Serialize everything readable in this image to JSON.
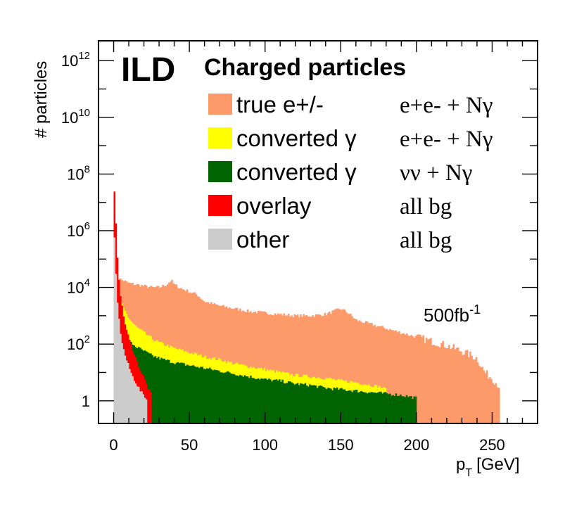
{
  "chart_data": {
    "type": "histogram",
    "experiment": "ILD",
    "title": "Charged particles",
    "xlabel": "p",
    "xlabel_sub": "T",
    "xlabel_unit": "[GeV]",
    "ylabel": "# particles",
    "xlim": [
      -10,
      280
    ],
    "ylog10_range": [
      -0.8,
      12.7
    ],
    "y_scale": "log",
    "xticks": [
      0,
      50,
      100,
      150,
      200,
      250
    ],
    "yticks": [
      {
        "base": "1",
        "exp": ""
      },
      {
        "base": "10",
        "exp": "2"
      },
      {
        "base": "10",
        "exp": "4"
      },
      {
        "base": "10",
        "exp": "6"
      },
      {
        "base": "10",
        "exp": "8"
      },
      {
        "base": "10",
        "exp": "10"
      },
      {
        "base": "10",
        "exp": "12"
      }
    ],
    "luminosity": {
      "text": "500fb",
      "exp": "-1"
    },
    "colors": {
      "true_e": "#fd9a6a",
      "conv_ee": "#ffff00",
      "conv_nunu": "#006400",
      "overlay": "#ff0000",
      "other": "#cccccc"
    },
    "series": [
      {
        "name": "true e+/-",
        "color_key": "true_e",
        "process": "e+e- + Nγ",
        "x": [
          0,
          2,
          4,
          6,
          8,
          10,
          15,
          20,
          25,
          30,
          35,
          38,
          40,
          45,
          50,
          55,
          60,
          70,
          80,
          90,
          100,
          110,
          120,
          130,
          140,
          150,
          155,
          160,
          170,
          180,
          190,
          200,
          210,
          220,
          230,
          240,
          245,
          250,
          255
        ],
        "log10": [
          4.4,
          4.4,
          4.3,
          4.25,
          4.2,
          4.15,
          4.1,
          4.05,
          4.0,
          4.0,
          4.1,
          4.25,
          4.1,
          3.95,
          3.85,
          3.75,
          3.5,
          3.35,
          3.25,
          3.15,
          3.1,
          3.05,
          3.0,
          3.0,
          3.05,
          3.25,
          3.1,
          2.85,
          2.7,
          2.55,
          2.4,
          2.25,
          2.1,
          1.95,
          1.75,
          1.5,
          1.0,
          0.8,
          0.5
        ]
      },
      {
        "name": "converted γ",
        "color_key": "conv_ee",
        "process": "e+e- + Nγ",
        "x": [
          0,
          2,
          4,
          6,
          8,
          10,
          15,
          20,
          25,
          30,
          40,
          50,
          60,
          70,
          80,
          90,
          100,
          110,
          120,
          130,
          140,
          150,
          160,
          170,
          175,
          180
        ],
        "log10": [
          4.5,
          4.0,
          3.6,
          3.3,
          3.1,
          2.9,
          2.6,
          2.4,
          2.2,
          2.05,
          1.85,
          1.7,
          1.55,
          1.45,
          1.3,
          1.2,
          1.1,
          1.0,
          0.9,
          0.85,
          0.8,
          0.7,
          0.65,
          0.55,
          0.5,
          0.4
        ]
      },
      {
        "name": "converted γ",
        "color_key": "conv_nunu",
        "process": "νν + Nγ",
        "x": [
          0,
          2,
          4,
          6,
          8,
          10,
          15,
          20,
          25,
          30,
          40,
          50,
          60,
          70,
          80,
          90,
          100,
          110,
          120,
          130,
          140,
          150,
          160,
          170,
          180,
          190,
          200
        ],
        "log10": [
          3.8,
          3.3,
          2.9,
          2.6,
          2.3,
          2.1,
          1.9,
          1.75,
          1.6,
          1.5,
          1.35,
          1.25,
          1.15,
          1.05,
          0.95,
          0.85,
          0.75,
          0.7,
          0.6,
          0.55,
          0.45,
          0.4,
          0.35,
          0.3,
          0.25,
          0.2,
          0.1
        ]
      },
      {
        "name": "overlay",
        "color_key": "overlay",
        "process": "all bg",
        "x": [
          0,
          1,
          2,
          3,
          4,
          5,
          6,
          8,
          10,
          12,
          14,
          16,
          18,
          20,
          22,
          25
        ],
        "log10": [
          7.9,
          6.8,
          5.6,
          4.6,
          4.0,
          3.5,
          3.1,
          2.6,
          2.2,
          1.9,
          1.6,
          1.3,
          1.0,
          0.8,
          0.5,
          0.2
        ]
      },
      {
        "name": "other",
        "color_key": "other",
        "process": "all bg",
        "x": [
          0,
          1,
          2,
          3,
          4,
          5,
          6,
          8,
          10,
          12,
          14,
          16,
          18,
          20,
          22
        ],
        "log10": [
          6.5,
          5.0,
          3.9,
          3.1,
          2.6,
          2.2,
          1.9,
          1.5,
          1.2,
          0.9,
          0.7,
          0.5,
          0.3,
          0.2,
          0.0
        ]
      }
    ]
  }
}
